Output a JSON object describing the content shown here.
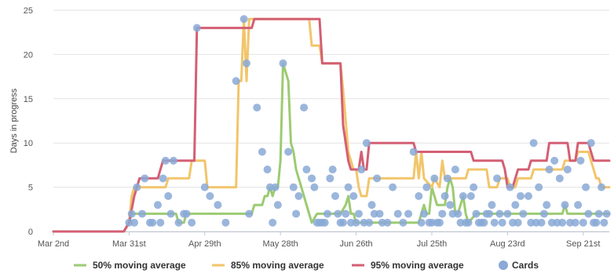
{
  "chart_data": {
    "type": "line",
    "title": "",
    "ylabel": "Days in progress",
    "xlabel": "",
    "ylim": [
      0,
      25
    ],
    "y_ticks": [
      "0",
      "5",
      "10",
      "15",
      "20",
      "25"
    ],
    "x_ticks": [
      {
        "day": 0,
        "label": "Mar 2nd"
      },
      {
        "day": 29,
        "label": "Mar 31st"
      },
      {
        "day": 58,
        "label": "Apr 29th"
      },
      {
        "day": 87,
        "label": "May 28th"
      },
      {
        "day": 116,
        "label": "Jun 26th"
      },
      {
        "day": 145,
        "label": "Jul 25th"
      },
      {
        "day": 174,
        "label": "Aug 23rd"
      },
      {
        "day": 203,
        "label": "Sep 21st"
      }
    ],
    "grid": true,
    "legend_position": "bottom",
    "series": [
      {
        "name": "50% moving average",
        "color": "#9ccb72",
        "points": [
          [
            0,
            0
          ],
          [
            27,
            0
          ],
          [
            29,
            1
          ],
          [
            30,
            2
          ],
          [
            47,
            2
          ],
          [
            48,
            1
          ],
          [
            50,
            1
          ],
          [
            51,
            2
          ],
          [
            76,
            2
          ],
          [
            77,
            3
          ],
          [
            80,
            3
          ],
          [
            81,
            4
          ],
          [
            82,
            4
          ],
          [
            83,
            5
          ],
          [
            84,
            4
          ],
          [
            85,
            5
          ],
          [
            86,
            5
          ],
          [
            87,
            8
          ],
          [
            88,
            19
          ],
          [
            90,
            17
          ],
          [
            91,
            10
          ],
          [
            92,
            9
          ],
          [
            93,
            7
          ],
          [
            95,
            5
          ],
          [
            97,
            3
          ],
          [
            98,
            2
          ],
          [
            99,
            1
          ],
          [
            101,
            2
          ],
          [
            110,
            2
          ],
          [
            112,
            3
          ],
          [
            113,
            4
          ],
          [
            114,
            2
          ],
          [
            115,
            2
          ],
          [
            116,
            1
          ],
          [
            140,
            1
          ],
          [
            141,
            2
          ],
          [
            142,
            3
          ],
          [
            143,
            2
          ],
          [
            144,
            2
          ],
          [
            145,
            5
          ],
          [
            146,
            4
          ],
          [
            147,
            3
          ],
          [
            150,
            3
          ],
          [
            151,
            5
          ],
          [
            152,
            6
          ],
          [
            153,
            5
          ],
          [
            154,
            2
          ],
          [
            155,
            2
          ],
          [
            157,
            4
          ],
          [
            158,
            2
          ],
          [
            159,
            1
          ],
          [
            162,
            2
          ],
          [
            195,
            2
          ],
          [
            196,
            3
          ],
          [
            197,
            2
          ],
          [
            213,
            2
          ]
        ]
      },
      {
        "name": "85% moving average",
        "color": "#f2c56b",
        "points": [
          [
            0,
            0
          ],
          [
            27,
            0
          ],
          [
            29,
            1
          ],
          [
            30,
            4
          ],
          [
            31,
            5
          ],
          [
            43,
            5
          ],
          [
            44,
            6
          ],
          [
            52,
            6
          ],
          [
            53,
            8
          ],
          [
            58,
            8
          ],
          [
            59,
            5
          ],
          [
            70,
            5
          ],
          [
            71,
            17
          ],
          [
            72,
            17
          ],
          [
            73,
            24
          ],
          [
            74,
            17
          ],
          [
            75,
            24
          ],
          [
            98,
            24
          ],
          [
            99,
            21
          ],
          [
            102,
            21
          ],
          [
            103,
            19
          ],
          [
            110,
            19
          ],
          [
            111,
            16
          ],
          [
            113,
            9
          ],
          [
            114,
            8
          ],
          [
            115,
            7
          ],
          [
            116,
            7
          ],
          [
            117,
            5
          ],
          [
            118,
            4
          ],
          [
            120,
            4
          ],
          [
            121,
            6
          ],
          [
            138,
            6
          ],
          [
            139,
            9
          ],
          [
            140,
            6
          ],
          [
            141,
            9
          ],
          [
            142,
            6
          ],
          [
            145,
            5
          ],
          [
            146,
            6
          ],
          [
            148,
            5
          ],
          [
            149,
            8
          ],
          [
            150,
            6
          ],
          [
            158,
            6
          ],
          [
            159,
            7
          ],
          [
            166,
            7
          ],
          [
            167,
            5
          ],
          [
            170,
            5
          ],
          [
            171,
            6
          ],
          [
            174,
            6
          ],
          [
            175,
            5
          ],
          [
            177,
            5
          ],
          [
            178,
            6
          ],
          [
            183,
            6
          ],
          [
            184,
            7
          ],
          [
            195,
            7
          ],
          [
            196,
            8
          ],
          [
            200,
            8
          ],
          [
            201,
            9
          ],
          [
            205,
            9
          ],
          [
            206,
            8
          ],
          [
            207,
            7
          ],
          [
            208,
            6
          ],
          [
            209,
            6
          ],
          [
            210,
            5
          ],
          [
            213,
            5
          ]
        ]
      },
      {
        "name": "95% moving average",
        "color": "#d35f73",
        "points": [
          [
            0,
            0
          ],
          [
            27,
            0
          ],
          [
            29,
            1
          ],
          [
            31,
            4
          ],
          [
            32,
            5
          ],
          [
            33,
            6
          ],
          [
            40,
            6
          ],
          [
            41,
            7
          ],
          [
            42,
            8
          ],
          [
            54,
            8
          ],
          [
            55,
            23
          ],
          [
            76,
            23
          ],
          [
            77,
            24
          ],
          [
            102,
            24
          ],
          [
            103,
            19
          ],
          [
            110,
            19
          ],
          [
            111,
            12
          ],
          [
            113,
            8
          ],
          [
            114,
            7
          ],
          [
            117,
            7
          ],
          [
            118,
            9
          ],
          [
            119,
            7
          ],
          [
            120,
            7
          ],
          [
            121,
            10
          ],
          [
            138,
            10
          ],
          [
            139,
            9
          ],
          [
            160,
            9
          ],
          [
            161,
            8
          ],
          [
            172,
            8
          ],
          [
            173,
            7
          ],
          [
            174,
            5
          ],
          [
            176,
            5
          ],
          [
            177,
            6
          ],
          [
            178,
            7
          ],
          [
            182,
            7
          ],
          [
            183,
            8
          ],
          [
            189,
            8
          ],
          [
            190,
            10
          ],
          [
            197,
            10
          ],
          [
            198,
            8
          ],
          [
            200,
            8
          ],
          [
            201,
            10
          ],
          [
            205,
            10
          ],
          [
            206,
            9
          ],
          [
            207,
            8
          ],
          [
            213,
            8
          ]
        ]
      },
      {
        "name": "Cards",
        "color": "#8aa9d6",
        "type": "scatter",
        "points": [
          [
            29,
            1
          ],
          [
            30,
            2
          ],
          [
            31,
            1
          ],
          [
            32,
            5
          ],
          [
            34,
            2
          ],
          [
            35,
            6
          ],
          [
            37,
            1
          ],
          [
            38,
            1
          ],
          [
            40,
            3
          ],
          [
            41,
            1
          ],
          [
            42,
            6
          ],
          [
            43,
            8
          ],
          [
            44,
            4
          ],
          [
            45,
            2
          ],
          [
            46,
            8
          ],
          [
            48,
            1
          ],
          [
            50,
            2
          ],
          [
            51,
            2
          ],
          [
            53,
            1
          ],
          [
            55,
            23
          ],
          [
            58,
            5
          ],
          [
            60,
            4
          ],
          [
            63,
            3
          ],
          [
            66,
            1
          ],
          [
            70,
            17
          ],
          [
            73,
            24
          ],
          [
            74,
            19
          ],
          [
            75,
            2
          ],
          [
            78,
            14
          ],
          [
            80,
            9
          ],
          [
            82,
            7
          ],
          [
            83,
            5
          ],
          [
            84,
            1
          ],
          [
            85,
            5
          ],
          [
            86,
            3
          ],
          [
            88,
            19
          ],
          [
            90,
            9
          ],
          [
            92,
            5
          ],
          [
            93,
            2
          ],
          [
            94,
            4
          ],
          [
            96,
            14
          ],
          [
            97,
            7
          ],
          [
            99,
            6
          ],
          [
            100,
            5
          ],
          [
            101,
            1
          ],
          [
            102,
            1
          ],
          [
            103,
            1
          ],
          [
            104,
            1
          ],
          [
            105,
            2
          ],
          [
            106,
            6
          ],
          [
            107,
            7
          ],
          [
            108,
            4
          ],
          [
            109,
            2
          ],
          [
            110,
            1
          ],
          [
            111,
            1
          ],
          [
            112,
            2
          ],
          [
            113,
            5
          ],
          [
            114,
            1
          ],
          [
            115,
            4
          ],
          [
            116,
            1
          ],
          [
            117,
            2
          ],
          [
            118,
            7
          ],
          [
            119,
            1
          ],
          [
            120,
            10
          ],
          [
            121,
            1
          ],
          [
            122,
            3
          ],
          [
            123,
            2
          ],
          [
            124,
            6
          ],
          [
            125,
            2
          ],
          [
            126,
            1
          ],
          [
            128,
            1
          ],
          [
            130,
            5
          ],
          [
            132,
            2
          ],
          [
            134,
            1
          ],
          [
            136,
            2
          ],
          [
            138,
            9
          ],
          [
            140,
            4
          ],
          [
            141,
            1
          ],
          [
            142,
            2
          ],
          [
            143,
            5
          ],
          [
            144,
            1
          ],
          [
            145,
            1
          ],
          [
            146,
            6
          ],
          [
            147,
            1
          ],
          [
            148,
            1
          ],
          [
            149,
            2
          ],
          [
            150,
            4
          ],
          [
            151,
            6
          ],
          [
            152,
            3
          ],
          [
            153,
            2
          ],
          [
            154,
            7
          ],
          [
            155,
            2
          ],
          [
            156,
            1
          ],
          [
            157,
            4
          ],
          [
            158,
            1
          ],
          [
            159,
            1
          ],
          [
            160,
            4
          ],
          [
            161,
            5
          ],
          [
            162,
            2
          ],
          [
            163,
            1
          ],
          [
            164,
            1
          ],
          [
            165,
            1
          ],
          [
            166,
            2
          ],
          [
            167,
            2
          ],
          [
            168,
            3
          ],
          [
            169,
            1
          ],
          [
            170,
            6
          ],
          [
            171,
            2
          ],
          [
            172,
            1
          ],
          [
            174,
            2
          ],
          [
            175,
            5
          ],
          [
            176,
            1
          ],
          [
            177,
            3
          ],
          [
            178,
            1
          ],
          [
            179,
            4
          ],
          [
            180,
            2
          ],
          [
            182,
            4
          ],
          [
            183,
            1
          ],
          [
            184,
            10
          ],
          [
            185,
            1
          ],
          [
            186,
            5
          ],
          [
            187,
            1
          ],
          [
            188,
            2
          ],
          [
            189,
            3
          ],
          [
            190,
            7
          ],
          [
            191,
            1
          ],
          [
            192,
            8
          ],
          [
            193,
            1
          ],
          [
            194,
            6
          ],
          [
            195,
            1
          ],
          [
            196,
            3
          ],
          [
            197,
            7
          ],
          [
            198,
            1
          ],
          [
            200,
            1
          ],
          [
            201,
            3
          ],
          [
            202,
            8
          ],
          [
            203,
            1
          ],
          [
            204,
            5
          ],
          [
            205,
            2
          ],
          [
            206,
            10
          ],
          [
            207,
            1
          ],
          [
            208,
            1
          ],
          [
            209,
            2
          ],
          [
            210,
            5
          ],
          [
            211,
            1
          ],
          [
            212,
            2
          ]
        ]
      }
    ]
  }
}
